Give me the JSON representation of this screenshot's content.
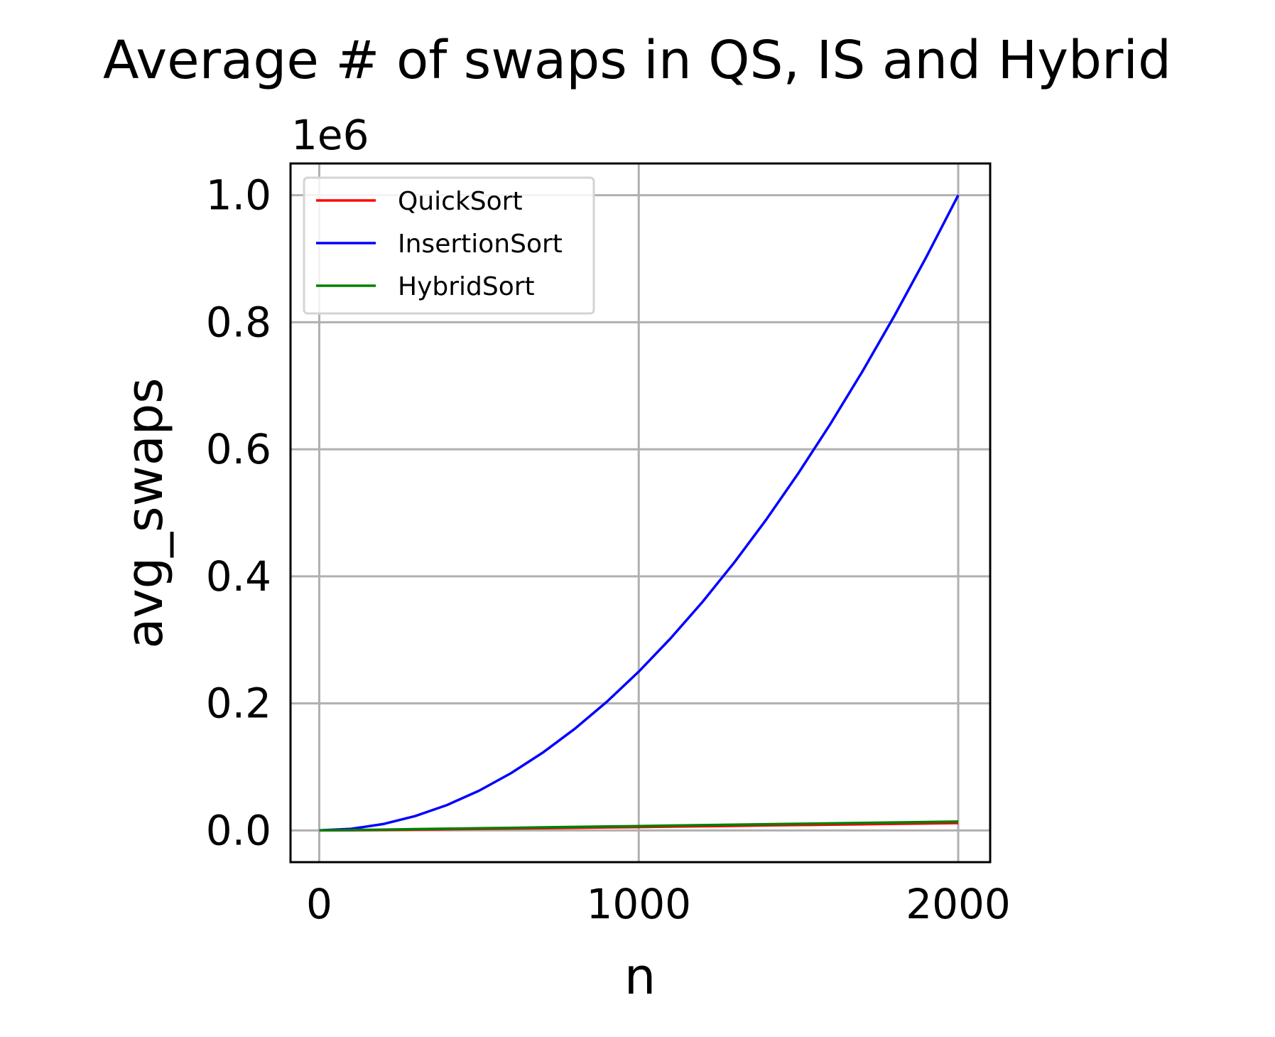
{
  "chart_data": {
    "type": "line",
    "title": "Average # of swaps in QS, IS and Hybrid",
    "xlabel": "n",
    "ylabel": "avg_swaps",
    "y_offset_label": "1e6",
    "y_scale_factor": 1000000,
    "xlim": [
      -90,
      2100
    ],
    "ylim": [
      -50000,
      1050000
    ],
    "x_ticks": [
      0,
      1000,
      2000
    ],
    "x_tick_labels": [
      "0",
      "1000",
      "2000"
    ],
    "y_ticks": [
      0,
      200000,
      400000,
      600000,
      800000,
      1000000
    ],
    "y_tick_labels": [
      "0.0",
      "0.2",
      "0.4",
      "0.6",
      "0.8",
      "1.0"
    ],
    "grid": true,
    "legend_position": "top-left",
    "x": [
      0,
      100,
      200,
      300,
      400,
      500,
      600,
      700,
      800,
      900,
      1000,
      1100,
      1200,
      1300,
      1400,
      1500,
      1600,
      1700,
      1800,
      1900,
      2000
    ],
    "series": [
      {
        "name": "QuickSort",
        "color": "#ff0000",
        "values": [
          0,
          300,
          700,
          1200,
          1800,
          2300,
          2900,
          3500,
          4100,
          4700,
          5300,
          5900,
          6500,
          7100,
          7800,
          8400,
          9000,
          9600,
          10300,
          10900,
          11500
        ]
      },
      {
        "name": "InsertionSort",
        "color": "#0000ff",
        "values": [
          0,
          2500,
          10000,
          22500,
          40000,
          62500,
          90000,
          122500,
          160000,
          202500,
          250000,
          302500,
          360000,
          422500,
          490000,
          562500,
          640000,
          722500,
          810000,
          902500,
          1000000
        ]
      },
      {
        "name": "HybridSort",
        "color": "#008000",
        "values": [
          0,
          600,
          1300,
          2000,
          2700,
          3400,
          4100,
          4800,
          5500,
          6200,
          6900,
          7600,
          8300,
          9000,
          9700,
          10400,
          11100,
          11800,
          12500,
          13200,
          13900
        ]
      }
    ]
  }
}
